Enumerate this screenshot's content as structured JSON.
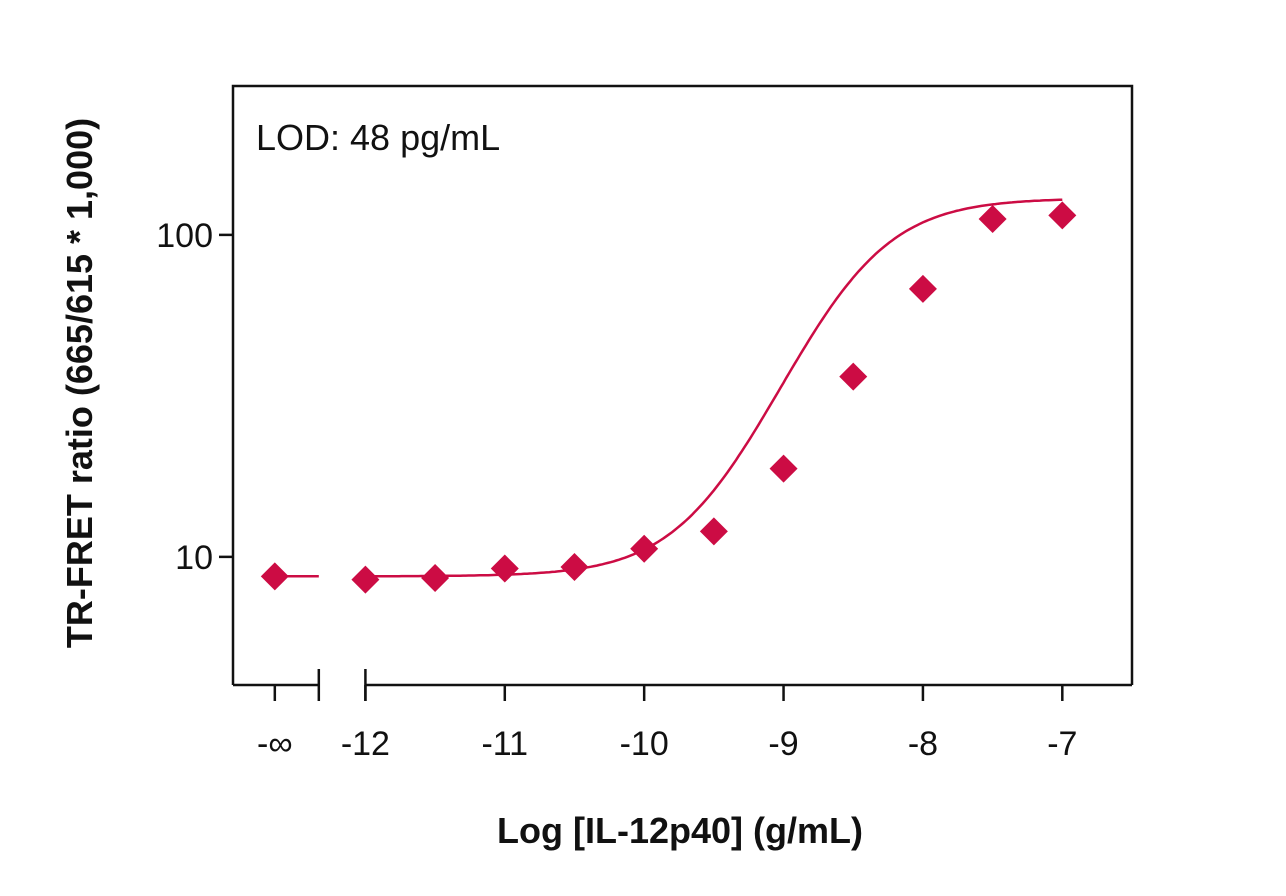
{
  "chart_data": {
    "type": "scatter",
    "xlabel": "Log [IL-12p40] (g/mL)",
    "ylabel": "TR-FRET ratio (665/615 * 1,000)",
    "annotation": "LOD: 48 pg/mL",
    "y_scale": "log",
    "ylim": [
      4,
      290
    ],
    "xlim": [
      -12.95,
      -6.5
    ],
    "x_ticks": [
      {
        "value": -12.65,
        "label": "-∞"
      },
      {
        "value": -12,
        "label": "-12"
      },
      {
        "value": -11,
        "label": "-11"
      },
      {
        "value": -10,
        "label": "-10"
      },
      {
        "value": -9,
        "label": "-9"
      },
      {
        "value": -8,
        "label": "-8"
      },
      {
        "value": -7,
        "label": "-7"
      }
    ],
    "y_ticks": [
      {
        "value": 10,
        "label": "10"
      },
      {
        "value": 100,
        "label": "100"
      }
    ],
    "axis_break_after": -12.65,
    "points": [
      {
        "x": "-∞",
        "y": 8.7
      },
      {
        "x": -12,
        "y": 8.5
      },
      {
        "x": -11.5,
        "y": 8.6
      },
      {
        "x": -11,
        "y": 9.2
      },
      {
        "x": -10.5,
        "y": 9.3
      },
      {
        "x": -10,
        "y": 10.6
      },
      {
        "x": -9.5,
        "y": 12.0
      },
      {
        "x": -9,
        "y": 18.8
      },
      {
        "x": -8.5,
        "y": 36.3
      },
      {
        "x": -8,
        "y": 68.0
      },
      {
        "x": -7.5,
        "y": 112.0
      },
      {
        "x": -7,
        "y": 115.0
      }
    ],
    "fit": {
      "type": "4PL",
      "bottom": 8.7,
      "top": 130,
      "logEC50": -8.55,
      "hill": 1.25
    },
    "color": "#cc0c44",
    "grid": false,
    "legend": "none"
  }
}
